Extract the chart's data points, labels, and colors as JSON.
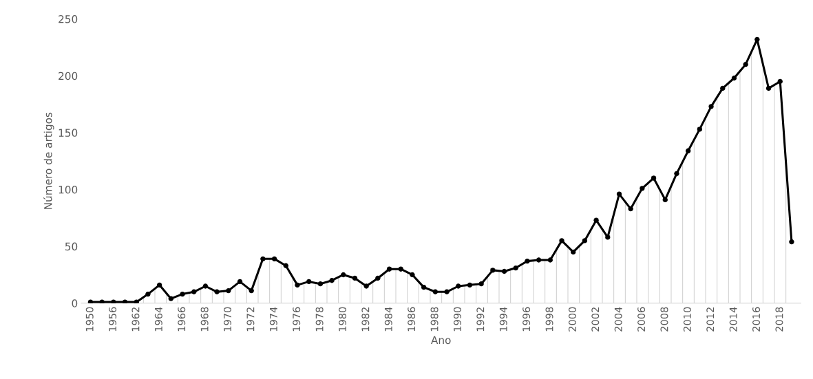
{
  "chart_data": {
    "type": "area",
    "xlabel": "Ano",
    "ylabel": "Número de artigos",
    "categories": [
      "1950",
      null,
      "1956",
      null,
      "1962",
      null,
      "1964",
      null,
      "1966",
      null,
      "1968",
      null,
      "1970",
      null,
      "1972",
      null,
      "1974",
      null,
      "1976",
      null,
      "1978",
      null,
      "1980",
      null,
      "1982",
      null,
      "1984",
      null,
      "1986",
      null,
      "1988",
      null,
      "1990",
      null,
      "1992",
      null,
      "1994",
      null,
      "1996",
      null,
      "1998",
      null,
      "2000",
      null,
      "2002",
      null,
      "2004",
      null,
      "2006",
      null,
      "2008",
      null,
      "2010",
      null,
      "2012",
      null,
      "2014",
      null,
      "2016",
      null,
      "2018",
      null
    ],
    "series": [
      {
        "color": "#000000",
        "marker": "circle",
        "values": [
          1,
          1,
          1,
          1,
          1,
          8,
          16,
          4,
          8,
          10,
          15,
          10,
          11,
          19,
          11,
          39,
          39,
          33,
          16,
          19,
          17,
          20,
          25,
          22,
          15,
          22,
          30,
          30,
          25,
          14,
          10,
          10,
          15,
          16,
          17,
          29,
          28,
          31,
          37,
          38,
          38,
          55,
          45,
          55,
          73,
          58,
          96,
          83,
          101,
          110,
          91,
          114,
          134,
          153,
          173,
          189,
          198,
          210,
          232,
          189,
          195,
          54
        ]
      }
    ],
    "ylim": [
      0,
      250
    ],
    "yticks": [
      0,
      50,
      100,
      150,
      200,
      250
    ],
    "grid": false,
    "legend": false,
    "line_style": "solid"
  }
}
